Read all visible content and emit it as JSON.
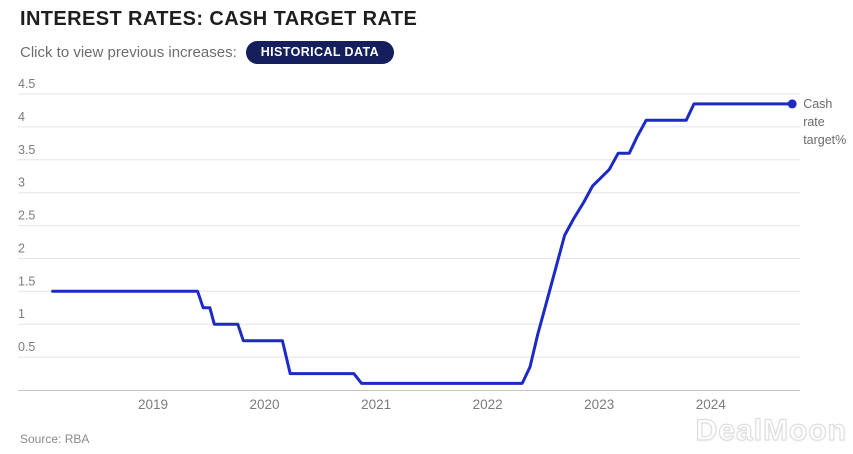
{
  "header": {
    "title": "INTEREST RATES: CASH TARGET RATE",
    "subtitle": "Click to view previous increases:",
    "badge_label": "HISTORICAL DATA",
    "badge_bg": "#141f5c"
  },
  "chart_data": {
    "type": "line",
    "title": "INTEREST RATES: CASH TARGET RATE",
    "grid": "horizontal",
    "legend_position": "end-of-line",
    "xlim": [
      2017.79,
      2024.8
    ],
    "ylim": [
      0,
      4.5
    ],
    "x_ticks": [
      "2019",
      "2020",
      "2021",
      "2022",
      "2023",
      "2024"
    ],
    "y_ticks": [
      "0.5",
      "1",
      "1.5",
      "2",
      "2.5",
      "3",
      "3.5",
      "4",
      "4.5"
    ],
    "grid_color": "#e4e4e4",
    "axis_color": "#c4c4c4",
    "series": [
      {
        "name": "Cash rate target%",
        "color": "#1e2ac4",
        "points": [
          [
            2018.1,
            1.5
          ],
          [
            2019.4,
            1.5
          ],
          [
            2019.45,
            1.25
          ],
          [
            2019.51,
            1.25
          ],
          [
            2019.55,
            1.0
          ],
          [
            2019.76,
            1.0
          ],
          [
            2019.81,
            0.75
          ],
          [
            2020.16,
            0.75
          ],
          [
            2020.23,
            0.25
          ],
          [
            2020.8,
            0.25
          ],
          [
            2020.87,
            0.1
          ],
          [
            2022.31,
            0.1
          ],
          [
            2022.38,
            0.35
          ],
          [
            2022.45,
            0.85
          ],
          [
            2022.53,
            1.35
          ],
          [
            2022.61,
            1.85
          ],
          [
            2022.69,
            2.35
          ],
          [
            2022.77,
            2.6
          ],
          [
            2022.86,
            2.85
          ],
          [
            2022.94,
            3.1
          ],
          [
            2023.09,
            3.35
          ],
          [
            2023.17,
            3.6
          ],
          [
            2023.27,
            3.6
          ],
          [
            2023.34,
            3.85
          ],
          [
            2023.42,
            4.1
          ],
          [
            2023.78,
            4.1
          ],
          [
            2023.85,
            4.35
          ],
          [
            2024.73,
            4.35
          ]
        ]
      }
    ],
    "end_label_lines": [
      "Cash",
      "rate",
      "target%"
    ]
  },
  "footer": {
    "source": "Source: RBA",
    "watermark": "DealMoon"
  }
}
